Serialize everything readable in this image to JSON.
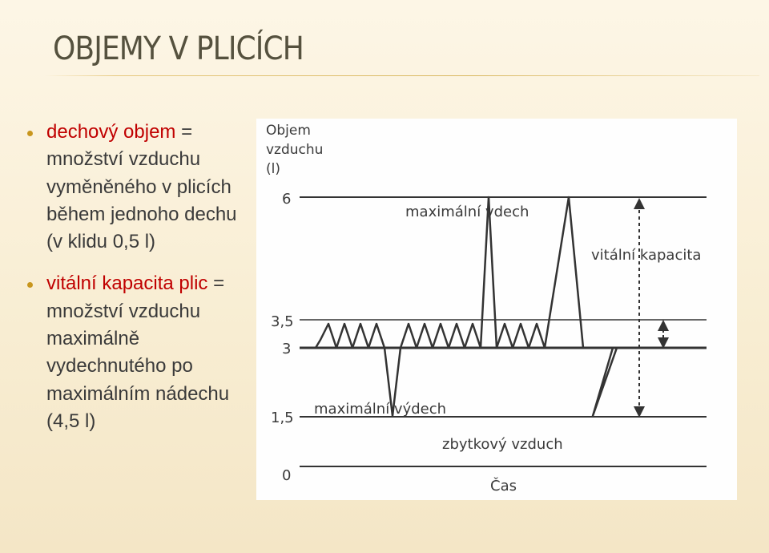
{
  "slide": {
    "title": "OBJEMY V PLICÍCH",
    "bullets": [
      {
        "term": "dechový objem",
        "text": " = množství vzduchu vyměněného v plicích během jednoho dechu (v klidu 0,5 l)"
      },
      {
        "term": "vitální kapacita plic",
        "text": " = množství vzduchu maximálně vydechnutého po maximálním nádechu (4,5 l)"
      }
    ]
  },
  "diagram": {
    "axis_title_lines": [
      "Objem",
      "vzduchu",
      "(l)"
    ],
    "x_axis_label": "Čas",
    "ticks": [
      {
        "label": "6",
        "value": 6
      },
      {
        "label": "3,5",
        "value": 3.5
      },
      {
        "label": "3",
        "value": 3
      },
      {
        "label": "1,5",
        "value": 1.5
      },
      {
        "label": "0",
        "value": 0
      }
    ],
    "labels": {
      "max_inhale": "maximální vdech",
      "vital_capacity": "vitální kapacita",
      "max_exhale": "maximální výdech",
      "residual": "zbytkový vzduch"
    },
    "colors": {
      "line": "#333333",
      "highlight": "#c00000",
      "bullet": "#c8961e"
    }
  }
}
